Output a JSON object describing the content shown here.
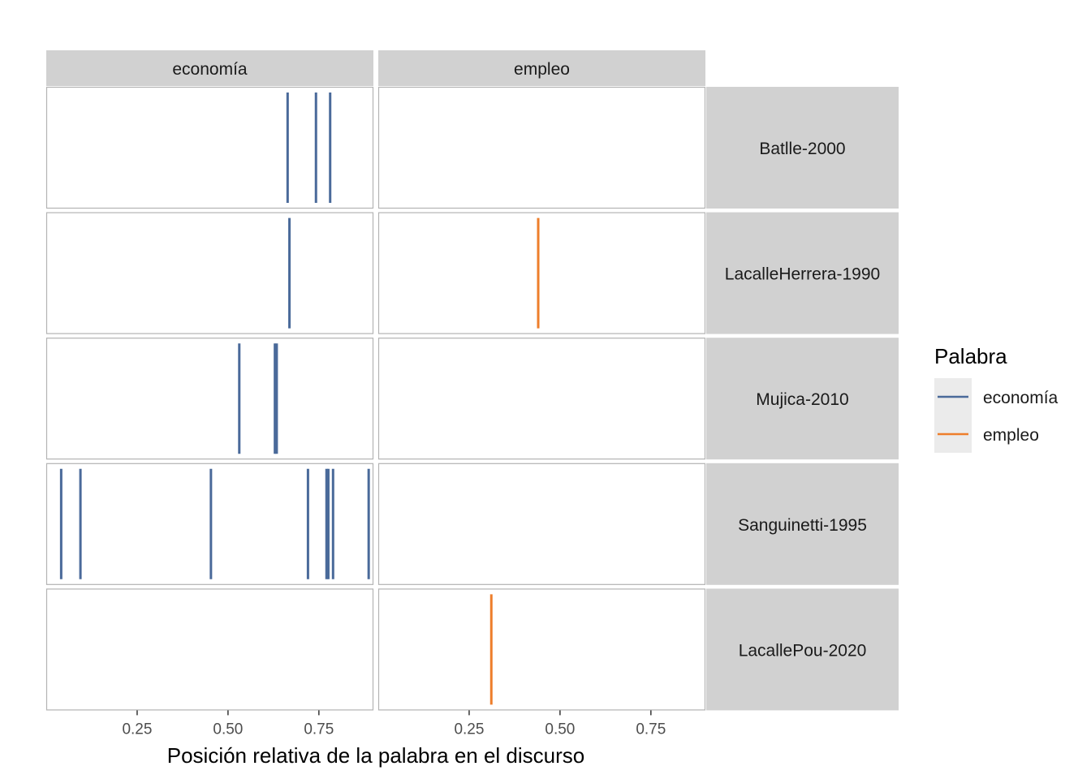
{
  "chart_data": {
    "type": "line",
    "subtype": "faceted-rug",
    "xlabel": "Posición relativa de la palabra en el discurso",
    "ylabel": "",
    "xlim": [
      0.0,
      0.9
    ],
    "x_ticks": [
      "0.25",
      "0.50",
      "0.75"
    ],
    "x_tick_values": [
      0.25,
      0.5,
      0.75
    ],
    "columns": [
      "economía",
      "empleo"
    ],
    "rows": [
      "Batlle-2000",
      "LacalleHerrera-1990",
      "Mujica-2010",
      "Sanguinetti-1995",
      "LacallePou-2020"
    ],
    "series": [
      {
        "name": "economía",
        "color": "#4a6a9a"
      },
      {
        "name": "empleo",
        "color": "#ee7e2b"
      }
    ],
    "legend": {
      "title": "Palabra",
      "position": "right",
      "items": [
        "economía",
        "empleo"
      ]
    },
    "grid": false,
    "panels": [
      {
        "row": "Batlle-2000",
        "column": "economía",
        "x": [
          0.664,
          0.742,
          0.781
        ]
      },
      {
        "row": "Batlle-2000",
        "column": "empleo",
        "x": []
      },
      {
        "row": "LacalleHerrera-1990",
        "column": "economía",
        "x": [
          0.669
        ]
      },
      {
        "row": "LacalleHerrera-1990",
        "column": "empleo",
        "x": [
          0.44
        ]
      },
      {
        "row": "Mujica-2010",
        "column": "economía",
        "x": [
          0.531,
          0.629,
          0.634
        ]
      },
      {
        "row": "Mujica-2010",
        "column": "empleo",
        "x": []
      },
      {
        "row": "Sanguinetti-1995",
        "column": "economía",
        "x": [
          0.041,
          0.094,
          0.453,
          0.72,
          0.771,
          0.776,
          0.789,
          0.887
        ]
      },
      {
        "row": "Sanguinetti-1995",
        "column": "empleo",
        "x": []
      },
      {
        "row": "LacallePou-2020",
        "column": "economía",
        "x": []
      },
      {
        "row": "LacallePou-2020",
        "column": "empleo",
        "x": [
          0.311
        ]
      }
    ]
  }
}
